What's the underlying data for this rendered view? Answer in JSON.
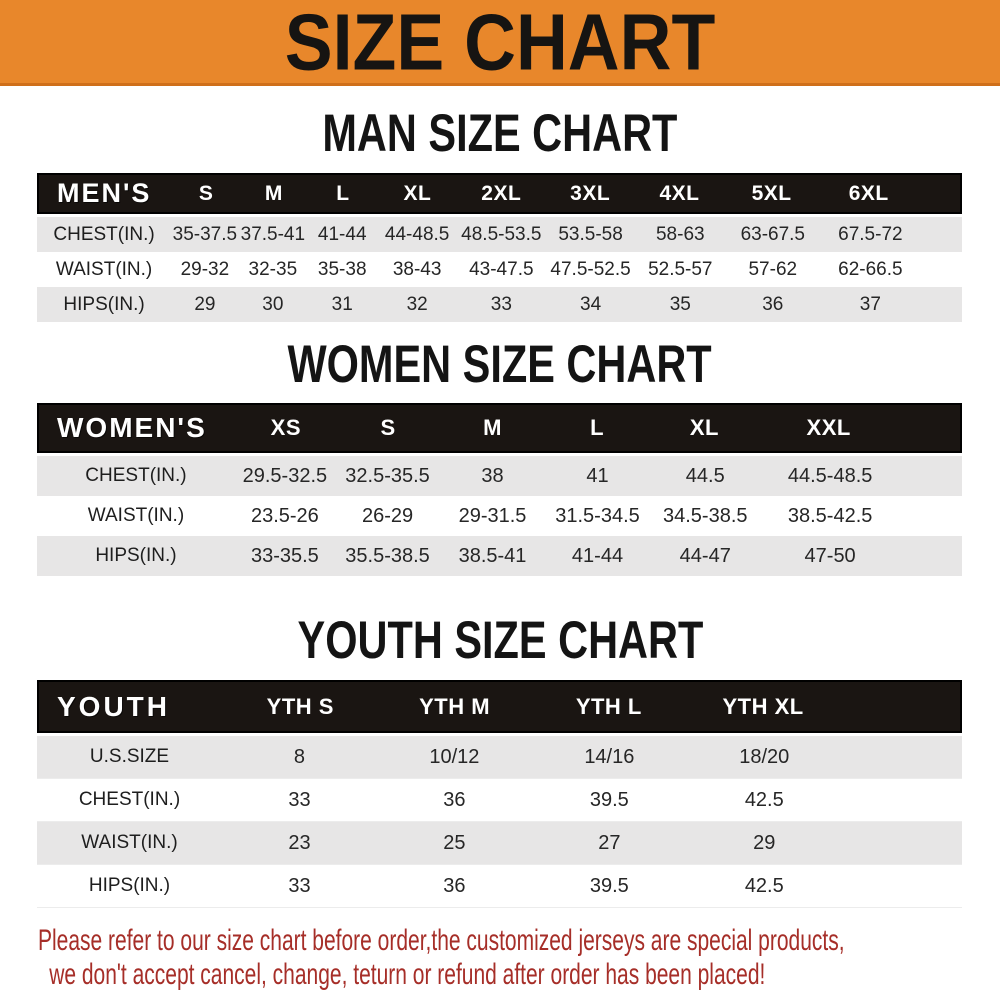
{
  "banner": {
    "title": "SIZE CHART"
  },
  "colors": {
    "banner_bg": "#E8872B",
    "table_header_bg": "#1A1512",
    "stripe_row": "#E7E6E6",
    "footer_text": "#A62E28"
  },
  "sections": [
    {
      "heading": "MAN SIZE CHART",
      "table": {
        "header_label": "MEN'S",
        "columns": [
          "S",
          "M",
          "L",
          "XL",
          "2XL",
          "3XL",
          "4XL",
          "5XL",
          "6XL"
        ],
        "rows": [
          {
            "label": "CHEST(IN.)",
            "values": [
              "35-37.5",
              "37.5-41",
              "41-44",
              "44-48.5",
              "48.5-53.5",
              "53.5-58",
              "58-63",
              "63-67.5",
              "67.5-72"
            ]
          },
          {
            "label": "WAIST(IN.)",
            "values": [
              "29-32",
              "32-35",
              "35-38",
              "38-43",
              "43-47.5",
              "47.5-52.5",
              "52.5-57",
              "57-62",
              "62-66.5"
            ]
          },
          {
            "label": "HIPS(IN.)",
            "values": [
              "29",
              "30",
              "31",
              "32",
              "33",
              "34",
              "35",
              "36",
              "37"
            ]
          }
        ]
      }
    },
    {
      "heading": "WOMEN SIZE CHART",
      "table": {
        "header_label": "WOMEN'S",
        "columns": [
          "XS",
          "S",
          "M",
          "L",
          "XL",
          "XXL"
        ],
        "rows": [
          {
            "label": "CHEST(IN.)",
            "values": [
              "29.5-32.5",
              "32.5-35.5",
              "38",
              "41",
              "44.5",
              "44.5-48.5"
            ]
          },
          {
            "label": "WAIST(IN.)",
            "values": [
              "23.5-26",
              "26-29",
              "29-31.5",
              "31.5-34.5",
              "34.5-38.5",
              "38.5-42.5"
            ]
          },
          {
            "label": "HIPS(IN.)",
            "values": [
              "33-35.5",
              "35.5-38.5",
              "38.5-41",
              "41-44",
              "44-47",
              "47-50"
            ]
          }
        ]
      }
    },
    {
      "heading": "YOUTH SIZE CHART",
      "table": {
        "header_label": "YOUTH",
        "columns": [
          "YTH S",
          "YTH M",
          "YTH L",
          "YTH XL"
        ],
        "rows": [
          {
            "label": "U.S.SIZE",
            "values": [
              "8",
              "10/12",
              "14/16",
              "18/20"
            ]
          },
          {
            "label": "CHEST(IN.)",
            "values": [
              "33",
              "36",
              "39.5",
              "42.5"
            ]
          },
          {
            "label": "WAIST(IN.)",
            "values": [
              "23",
              "25",
              "27",
              "29"
            ]
          },
          {
            "label": "HIPS(IN.)",
            "values": [
              "33",
              "36",
              "39.5",
              "42.5"
            ]
          }
        ]
      }
    }
  ],
  "footer": {
    "line1": "Please refer to our size chart before order,the customized jerseys are special products,",
    "line2": "we don't accept cancel, change, teturn or refund after order has been placed!"
  }
}
